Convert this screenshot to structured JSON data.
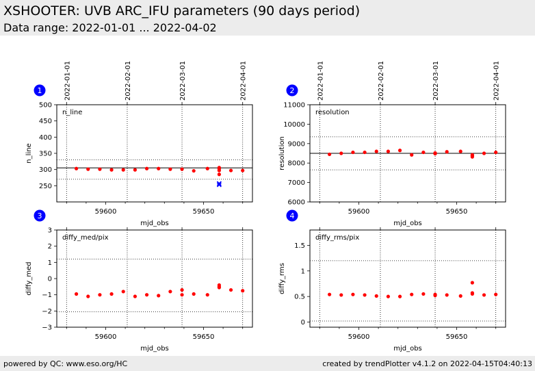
{
  "header": {
    "title": "XSHOOTER: UVB ARC_IFU parameters (90 days period)",
    "subtitle": "Data range: 2022-01-01 ... 2022-04-02"
  },
  "footer": {
    "left": "powered by QC: www.eso.org/HC",
    "right": "created by trendPlotter v4.1.2 on 2022-04-15T04:40:13"
  },
  "date_axis": {
    "labels": [
      "2022-01-01",
      "2022-02-01",
      "2022-03-01",
      "2022-04-01"
    ],
    "mjd": [
      59580,
      59611,
      59639,
      59670
    ]
  },
  "chart_data": [
    {
      "type": "scatter",
      "badge": "1",
      "label": "n_line",
      "xlabel": "mjd_obs",
      "ylabel": "n_line",
      "xlim": [
        59575,
        59675
      ],
      "ylim": [
        200,
        500
      ],
      "yticks": [
        250,
        300,
        350,
        400,
        450,
        500
      ],
      "xticks": [
        59600,
        59650
      ],
      "ref_line": 305,
      "limits": [
        270,
        330
      ],
      "color": "#ff0000",
      "x": [
        59585,
        59591,
        59597,
        59603,
        59609,
        59615,
        59621,
        59627,
        59633,
        59639,
        59645,
        59652,
        59658,
        59658,
        59658,
        59658,
        59664,
        59670
      ],
      "y": [
        303,
        301,
        301,
        299,
        299,
        299,
        303,
        303,
        301,
        301,
        296,
        303,
        285,
        297,
        302,
        306,
        297,
        297
      ],
      "outliers": {
        "color": "#0000ff",
        "x": [
          59658,
          59658
        ],
        "y": [
          257,
          253
        ]
      }
    },
    {
      "type": "scatter",
      "badge": "2",
      "label": "resolution",
      "xlabel": "mjd_obs",
      "ylabel": "resolution",
      "xlim": [
        59575,
        59675
      ],
      "ylim": [
        6000,
        11000
      ],
      "yticks": [
        6000,
        7000,
        8000,
        9000,
        10000,
        11000
      ],
      "xticks": [
        59600,
        59650
      ],
      "ref_line": 8500,
      "limits": [
        7650,
        9350
      ],
      "color": "#ff0000",
      "x": [
        59585,
        59591,
        59597,
        59603,
        59609,
        59615,
        59621,
        59627,
        59633,
        59639,
        59639,
        59645,
        59652,
        59658,
        59658,
        59658,
        59664,
        59670
      ],
      "y": [
        8450,
        8500,
        8550,
        8550,
        8600,
        8600,
        8650,
        8420,
        8550,
        8520,
        8480,
        8580,
        8600,
        8320,
        8380,
        8420,
        8500,
        8550
      ]
    },
    {
      "type": "scatter",
      "badge": "3",
      "label": "diffy_med/pix",
      "xlabel": "mjd_obs",
      "ylabel": "diffy_med",
      "xlim": [
        59575,
        59675
      ],
      "ylim": [
        -3,
        3
      ],
      "yticks": [
        -3,
        -2,
        -1,
        0,
        1,
        2,
        3
      ],
      "xticks": [
        59600,
        59650
      ],
      "limits": [
        -2.05,
        1.2
      ],
      "color": "#ff0000",
      "x": [
        59585,
        59591,
        59597,
        59603,
        59609,
        59615,
        59621,
        59627,
        59633,
        59639,
        59639,
        59645,
        59652,
        59658,
        59658,
        59658,
        59664,
        59670
      ],
      "y": [
        -0.95,
        -1.1,
        -1.0,
        -0.95,
        -0.8,
        -1.1,
        -1.0,
        -1.05,
        -0.8,
        -1.0,
        -0.7,
        -0.95,
        -1.0,
        -0.4,
        -0.5,
        -0.55,
        -0.7,
        -0.75
      ]
    },
    {
      "type": "scatter",
      "badge": "4",
      "label": "diffy_rms/pix",
      "xlabel": "mjd_obs",
      "ylabel": "diffy_rms",
      "xlim": [
        59575,
        59675
      ],
      "ylim": [
        -0.1,
        1.8
      ],
      "yticks": [
        0.0,
        0.5,
        1.0,
        1.5
      ],
      "xticks": [
        59600,
        59650
      ],
      "limits": [
        0.02,
        1.2
      ],
      "color": "#ff0000",
      "x": [
        59585,
        59591,
        59597,
        59603,
        59609,
        59615,
        59621,
        59627,
        59633,
        59639,
        59639,
        59645,
        59652,
        59658,
        59658,
        59658,
        59664,
        59670
      ],
      "y": [
        0.54,
        0.53,
        0.54,
        0.53,
        0.51,
        0.5,
        0.5,
        0.54,
        0.55,
        0.52,
        0.54,
        0.53,
        0.51,
        0.77,
        0.57,
        0.55,
        0.53,
        0.54
      ]
    }
  ]
}
